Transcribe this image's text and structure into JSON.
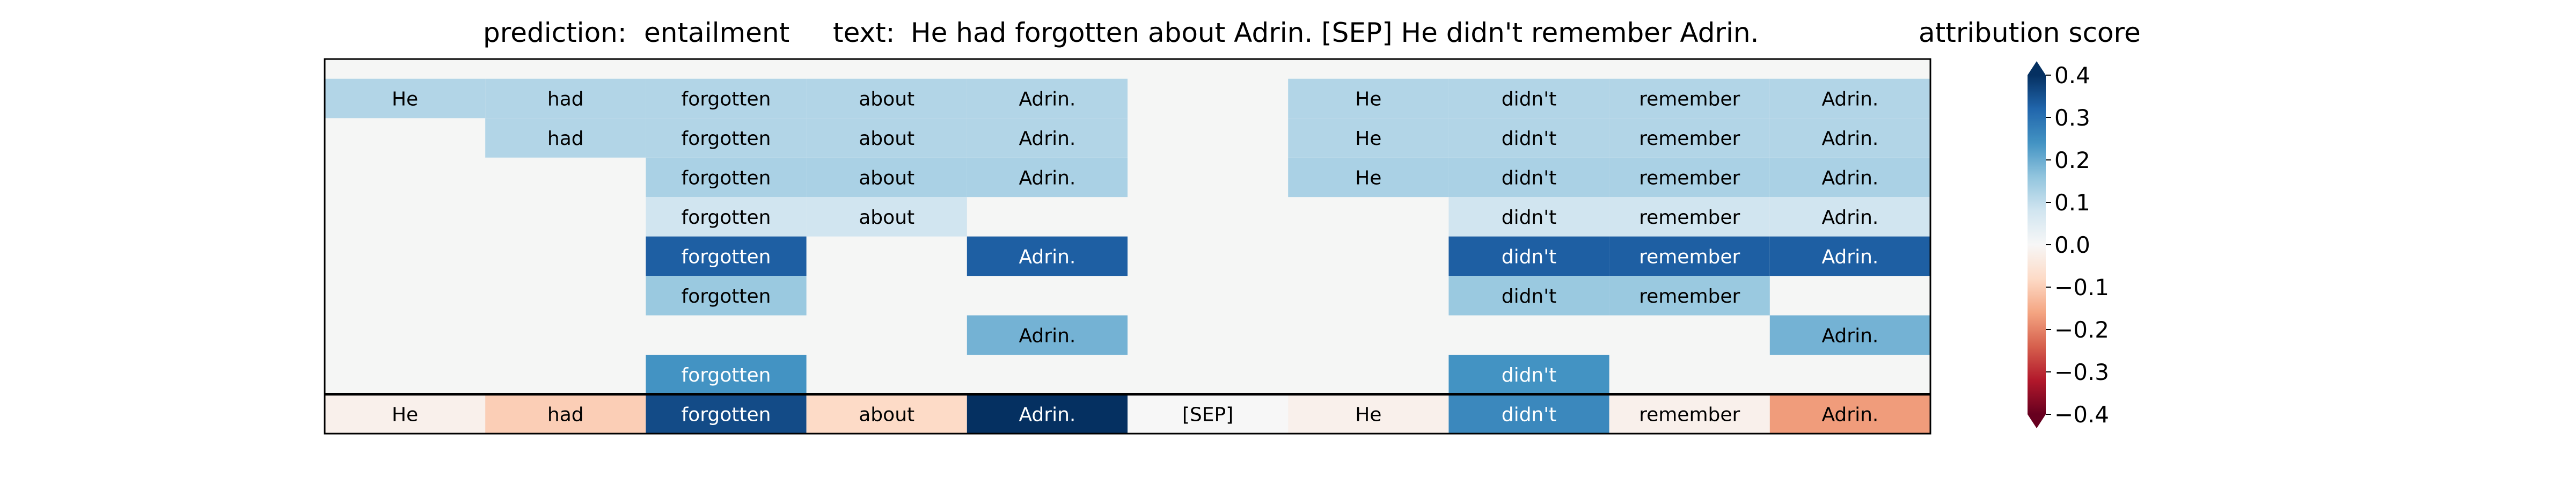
{
  "header": {
    "prediction_label": "prediction:",
    "prediction_value": "entailment",
    "text_label": "text:",
    "text_value": "He had forgotten about Adrin. [SEP] He didn't remember Adrin."
  },
  "colorbar": {
    "title": "attribution score",
    "ticks": [
      "0.4",
      "0.3",
      "0.2",
      "0.1",
      "0.0",
      "−0.1",
      "−0.2",
      "−0.3",
      "−0.4"
    ],
    "tick_values": [
      0.4,
      0.3,
      0.2,
      0.1,
      0.0,
      -0.1,
      -0.2,
      -0.3,
      -0.4
    ],
    "range": [
      -0.4,
      0.4
    ],
    "extend": "both",
    "colormap": "RdBu",
    "position": "right"
  },
  "chart_data": {
    "type": "heatmap",
    "title": "",
    "tokens": [
      "He",
      "had",
      "forgotten",
      "about",
      "Adrin.",
      "[SEP]",
      "He",
      "didn't",
      "remember",
      "Adrin."
    ],
    "background_color": "#f5f6f5",
    "rows": [
      [
        0.12,
        0.12,
        0.12,
        0.12,
        0.12,
        null,
        0.12,
        0.12,
        0.12,
        0.12
      ],
      [
        null,
        0.12,
        0.12,
        0.12,
        0.12,
        null,
        0.12,
        0.12,
        0.12,
        0.12
      ],
      [
        null,
        null,
        0.13,
        0.13,
        0.13,
        null,
        0.13,
        0.13,
        0.13,
        0.13
      ],
      [
        null,
        null,
        0.08,
        0.08,
        null,
        null,
        null,
        0.08,
        0.08,
        0.08
      ],
      [
        null,
        null,
        0.33,
        null,
        0.33,
        null,
        null,
        0.33,
        0.33,
        0.33
      ],
      [
        null,
        null,
        0.15,
        null,
        null,
        null,
        null,
        0.15,
        0.15,
        null
      ],
      [
        null,
        null,
        null,
        null,
        0.19,
        null,
        null,
        null,
        null,
        0.19
      ],
      [
        null,
        null,
        0.24,
        null,
        null,
        null,
        null,
        0.24,
        null,
        null
      ]
    ],
    "final_row": [
      -0.02,
      -0.1,
      0.36,
      -0.08,
      0.42,
      0.0,
      -0.02,
      0.26,
      -0.02,
      -0.17
    ]
  }
}
